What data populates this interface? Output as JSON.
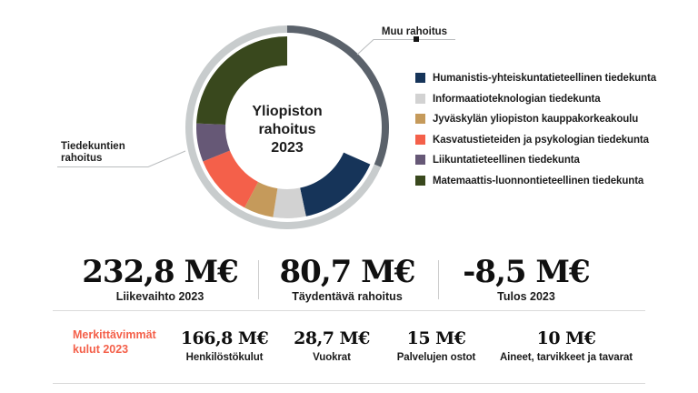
{
  "donut": {
    "center_title": "Yliopiston rahoitus 2023",
    "callout_other": "Muu rahoitus",
    "callout_faculties": "Tiedekuntien rahoitus"
  },
  "legend": [
    {
      "label": "Humanistis-yhteiskuntatieteellinen tiedekunta",
      "color": "#163459"
    },
    {
      "label": "Informaatioteknologian tiedekunta",
      "color": "#d2d2d2"
    },
    {
      "label": "Jyväskylän yliopiston kauppakorkeakoulu",
      "color": "#c59a5b"
    },
    {
      "label": "Kasvatustieteiden ja psykologian tiedekunta",
      "color": "#f4604a"
    },
    {
      "label": "Liikuntatieteellinen tiedekunta",
      "color": "#665876"
    },
    {
      "label": "Matemaattis-luonnontieteellinen tiedekunta",
      "color": "#39481d"
    }
  ],
  "key_figures": [
    {
      "value": "232,8 M€",
      "label": "Liikevaihto 2023"
    },
    {
      "value": "80,7 M€",
      "label": "Täydentävä rahoitus"
    },
    {
      "value": "-8,5 M€",
      "label": "Tulos 2023"
    }
  ],
  "expenses": {
    "title": "Merkittävimmät kulut 2023",
    "items": [
      {
        "value": "166,8 M€",
        "label": "Henkilöstökulut"
      },
      {
        "value": "28,7 M€",
        "label": "Vuokrat"
      },
      {
        "value": "15 M€",
        "label": "Palvelujen ostot"
      },
      {
        "value": "10 M€",
        "label": "Aineet, tarvikkeet ja tavarat"
      }
    ]
  },
  "chart_data": {
    "type": "donut",
    "title": "Yliopiston rahoitus 2023",
    "units": "M€",
    "legend_position": "right",
    "geometry": {
      "outer_radius": 108,
      "outer_width": 8,
      "inner_radius": 84,
      "inner_width": 32
    },
    "outer_ring_segments": [
      {
        "label": "Muu rahoitus",
        "start_deg": 0,
        "end_deg": 113,
        "color": "#5b626b"
      },
      {
        "label": "Tiedekuntien rahoitus",
        "start_deg": 113,
        "end_deg": 360,
        "color": "#c8cccd"
      }
    ],
    "inner_ring_segments": [
      {
        "label": "Humanistis-yhteiskuntatieteellinen tiedekunta",
        "start_deg": 114,
        "end_deg": 168,
        "color": "#163459"
      },
      {
        "label": "Informaatioteknologian tiedekunta",
        "start_deg": 168,
        "end_deg": 189,
        "color": "#d2d2d2"
      },
      {
        "label": "Jyväskylän yliopiston kauppakorkeakoulu",
        "start_deg": 189,
        "end_deg": 208,
        "color": "#c59a5b"
      },
      {
        "label": "Kasvatustieteiden ja psykologian tiedekunta",
        "start_deg": 208,
        "end_deg": 248,
        "color": "#f4604a"
      },
      {
        "label": "Liikuntatieteellinen tiedekunta",
        "start_deg": 248,
        "end_deg": 272.5,
        "color": "#665876"
      },
      {
        "label": "Matemaattis-luonnontieteellinen tiedekunta",
        "start_deg": 272.5,
        "end_deg": 360,
        "color": "#39481d"
      }
    ],
    "annotations": [
      "Muu rahoitus",
      "Tiedekuntien rahoitus"
    ],
    "key_figures": [
      {
        "value": "232,8",
        "unit": "M€",
        "label": "Liikevaihto 2023"
      },
      {
        "value": "80,7",
        "unit": "M€",
        "label": "Täydentävä rahoitus"
      },
      {
        "value": "-8,5",
        "unit": "M€",
        "label": "Tulos 2023"
      }
    ],
    "expenses": [
      {
        "value": "166,8",
        "unit": "M€",
        "label": "Henkilöstökulut"
      },
      {
        "value": "28,7",
        "unit": "M€",
        "label": "Vuokrat"
      },
      {
        "value": "15",
        "unit": "M€",
        "label": "Palvelujen ostot"
      },
      {
        "value": "10",
        "unit": "M€",
        "label": "Aineet, tarvikkeet ja tavarat"
      }
    ]
  }
}
